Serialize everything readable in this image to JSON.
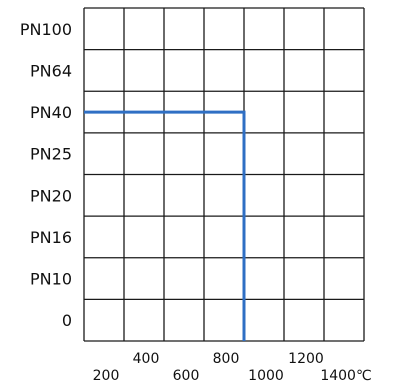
{
  "chart_data": {
    "type": "line",
    "y_categories": [
      "0",
      "PN10",
      "PN16",
      "PN20",
      "PN25",
      "PN40",
      "PN64",
      "PN100"
    ],
    "x_tick_labels": [
      "200",
      "400",
      "600",
      "800",
      "1000",
      "1200",
      "1400℃"
    ],
    "x_ticks": [
      200,
      400,
      600,
      800,
      1000,
      1200,
      1400
    ],
    "xlim": [
      0,
      1400
    ],
    "grid": true,
    "series": [
      {
        "points": [
          {
            "x": 0,
            "y": "PN40"
          },
          {
            "x": 800,
            "y": "PN40"
          },
          {
            "x": 800,
            "y": "0"
          }
        ]
      }
    ],
    "colors": {
      "grid": "#1a1a1a",
      "series": "#2f6fc4"
    }
  }
}
